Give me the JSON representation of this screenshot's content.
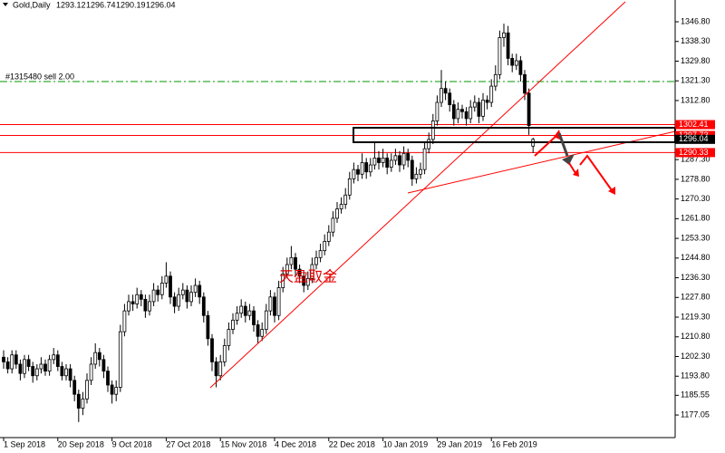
{
  "chart_data": {
    "type": "candlestick",
    "title": "Gold,Daily",
    "watermark": "天盈取金",
    "ylim": [
      1167.3,
      1356.2
    ],
    "yticks": [
      {
        "value": 1346.8,
        "label": "1346.80"
      },
      {
        "value": 1338.3,
        "label": "1338.30"
      },
      {
        "value": 1329.8,
        "label": "1329.80"
      },
      {
        "value": 1321.3,
        "label": "1321.30"
      },
      {
        "value": 1312.8,
        "label": "1312.80"
      },
      {
        "value": 1287.3,
        "label": "1287.30"
      },
      {
        "value": 1278.8,
        "label": "1278.80"
      },
      {
        "value": 1270.3,
        "label": "1270.30"
      },
      {
        "value": 1261.8,
        "label": "1261.80"
      },
      {
        "value": 1253.3,
        "label": "1253.30"
      },
      {
        "value": 1244.8,
        "label": "1244.80"
      },
      {
        "value": 1236.3,
        "label": "1236.30"
      },
      {
        "value": 1227.8,
        "label": "1227.80"
      },
      {
        "value": 1219.3,
        "label": "1219.30"
      },
      {
        "value": 1210.8,
        "label": "1210.80"
      },
      {
        "value": 1202.3,
        "label": "1202.30"
      },
      {
        "value": 1193.8,
        "label": "1193.80"
      },
      {
        "value": 1185.55,
        "label": "1185.55"
      },
      {
        "value": 1177.05,
        "label": "1177.05"
      }
    ],
    "categories": [
      "1 Sep 2018",
      null,
      null,
      null,
      null,
      null,
      null,
      null,
      null,
      null,
      null,
      null,
      null,
      "20 Sep 2018",
      null,
      null,
      null,
      null,
      null,
      null,
      null,
      null,
      null,
      null,
      null,
      null,
      "9 Oct 2018",
      null,
      null,
      null,
      null,
      null,
      null,
      null,
      null,
      null,
      null,
      null,
      null,
      "27 Oct 2018",
      null,
      null,
      null,
      null,
      null,
      null,
      null,
      null,
      null,
      null,
      null,
      null,
      "15 Nov 2018",
      null,
      null,
      null,
      null,
      null,
      null,
      null,
      null,
      null,
      null,
      null,
      null,
      "4 Dec 2018",
      null,
      null,
      null,
      null,
      null,
      null,
      null,
      null,
      null,
      null,
      null,
      null,
      "22 Dec 2018",
      null,
      null,
      null,
      null,
      null,
      null,
      null,
      null,
      null,
      null,
      null,
      null,
      "10 Jan 2019",
      null,
      null,
      null,
      null,
      null,
      null,
      null,
      null,
      null,
      null,
      null,
      null,
      "29 Jan 2019",
      null,
      null,
      null,
      null,
      null,
      null,
      null,
      null,
      null,
      null,
      null,
      null,
      "16 Feb 2019",
      null,
      null,
      null,
      null,
      null,
      null,
      null,
      null,
      null,
      null
    ],
    "ohlc": [
      [
        1202,
        1205,
        1197,
        1200
      ],
      [
        1200,
        1202,
        1195,
        1197
      ],
      [
        1197,
        1205,
        1195,
        1203
      ],
      [
        1203,
        1205,
        1197,
        1199
      ],
      [
        1199,
        1201,
        1192,
        1195
      ],
      [
        1195,
        1203,
        1193,
        1201
      ],
      [
        1201,
        1203,
        1196,
        1198
      ],
      [
        1198,
        1200,
        1191,
        1194
      ],
      [
        1194,
        1199,
        1192,
        1197
      ],
      [
        1197,
        1202,
        1195,
        1199
      ],
      [
        1199,
        1201,
        1194,
        1196
      ],
      [
        1196,
        1203,
        1194,
        1201
      ],
      [
        1201,
        1206,
        1199,
        1203
      ],
      [
        1203,
        1205,
        1196,
        1198
      ],
      [
        1198,
        1200,
        1192,
        1194
      ],
      [
        1194,
        1199,
        1192,
        1197
      ],
      [
        1197,
        1199,
        1189,
        1192
      ],
      [
        1192,
        1194,
        1183,
        1186
      ],
      [
        1186,
        1188,
        1174,
        1180
      ],
      [
        1180,
        1187,
        1177,
        1184
      ],
      [
        1184,
        1195,
        1182,
        1192
      ],
      [
        1192,
        1202,
        1190,
        1199
      ],
      [
        1199,
        1208,
        1197,
        1204
      ],
      [
        1204,
        1206,
        1198,
        1201
      ],
      [
        1201,
        1203,
        1193,
        1196
      ],
      [
        1196,
        1198,
        1187,
        1190
      ],
      [
        1190,
        1192,
        1182,
        1186
      ],
      [
        1186,
        1192,
        1183,
        1189
      ],
      [
        1189,
        1216,
        1187,
        1213
      ],
      [
        1213,
        1225,
        1211,
        1222
      ],
      [
        1222,
        1229,
        1220,
        1226
      ],
      [
        1226,
        1229,
        1222,
        1225
      ],
      [
        1225,
        1232,
        1223,
        1229
      ],
      [
        1229,
        1231,
        1224,
        1227
      ],
      [
        1227,
        1229,
        1219,
        1222
      ],
      [
        1222,
        1229,
        1220,
        1226
      ],
      [
        1226,
        1234,
        1224,
        1231
      ],
      [
        1231,
        1233,
        1226,
        1229
      ],
      [
        1229,
        1237,
        1227,
        1234
      ],
      [
        1234,
        1243,
        1232,
        1237
      ],
      [
        1237,
        1239,
        1225,
        1228
      ],
      [
        1228,
        1230,
        1221,
        1224
      ],
      [
        1224,
        1232,
        1222,
        1229
      ],
      [
        1229,
        1234,
        1227,
        1231
      ],
      [
        1231,
        1233,
        1223,
        1226
      ],
      [
        1226,
        1233,
        1224,
        1230
      ],
      [
        1230,
        1236,
        1228,
        1233
      ],
      [
        1233,
        1235,
        1225,
        1228
      ],
      [
        1228,
        1230,
        1217,
        1220
      ],
      [
        1220,
        1222,
        1207,
        1210
      ],
      [
        1210,
        1212,
        1196,
        1200
      ],
      [
        1200,
        1202,
        1189,
        1194
      ],
      [
        1194,
        1203,
        1192,
        1200
      ],
      [
        1200,
        1210,
        1198,
        1207
      ],
      [
        1207,
        1217,
        1205,
        1214
      ],
      [
        1214,
        1221,
        1212,
        1218
      ],
      [
        1218,
        1224,
        1216,
        1221
      ],
      [
        1221,
        1227,
        1219,
        1224
      ],
      [
        1224,
        1226,
        1217,
        1220
      ],
      [
        1220,
        1225,
        1218,
        1222
      ],
      [
        1222,
        1224,
        1213,
        1216
      ],
      [
        1216,
        1218,
        1208,
        1211
      ],
      [
        1211,
        1217,
        1209,
        1214
      ],
      [
        1214,
        1225,
        1212,
        1222
      ],
      [
        1222,
        1231,
        1220,
        1228
      ],
      [
        1228,
        1230,
        1217,
        1220
      ],
      [
        1220,
        1235,
        1218,
        1232
      ],
      [
        1232,
        1241,
        1230,
        1238
      ],
      [
        1238,
        1245,
        1236,
        1242
      ],
      [
        1242,
        1250,
        1240,
        1245
      ],
      [
        1245,
        1247,
        1237,
        1240
      ],
      [
        1240,
        1242,
        1234,
        1237
      ],
      [
        1237,
        1239,
        1230,
        1233
      ],
      [
        1233,
        1239,
        1231,
        1236
      ],
      [
        1236,
        1245,
        1234,
        1242
      ],
      [
        1242,
        1248,
        1240,
        1245
      ],
      [
        1245,
        1251,
        1243,
        1248
      ],
      [
        1248,
        1255,
        1246,
        1252
      ],
      [
        1252,
        1259,
        1250,
        1256
      ],
      [
        1256,
        1265,
        1254,
        1262
      ],
      [
        1262,
        1269,
        1260,
        1266
      ],
      [
        1266,
        1271,
        1264,
        1268
      ],
      [
        1268,
        1275,
        1266,
        1272
      ],
      [
        1272,
        1282,
        1270,
        1279
      ],
      [
        1279,
        1286,
        1277,
        1283
      ],
      [
        1283,
        1285,
        1278,
        1281
      ],
      [
        1281,
        1290,
        1279,
        1286
      ],
      [
        1286,
        1288,
        1279,
        1282
      ],
      [
        1282,
        1288,
        1280,
        1285
      ],
      [
        1285,
        1295,
        1283,
        1288
      ],
      [
        1288,
        1291,
        1283,
        1286
      ],
      [
        1286,
        1292,
        1284,
        1288
      ],
      [
        1288,
        1290,
        1281,
        1284
      ],
      [
        1284,
        1290,
        1282,
        1287
      ],
      [
        1287,
        1292,
        1285,
        1289
      ],
      [
        1289,
        1291,
        1282,
        1285
      ],
      [
        1285,
        1293,
        1283,
        1290
      ],
      [
        1290,
        1292,
        1284,
        1287
      ],
      [
        1287,
        1289,
        1276,
        1279
      ],
      [
        1279,
        1284,
        1277,
        1281
      ],
      [
        1281,
        1286,
        1279,
        1283
      ],
      [
        1283,
        1295,
        1281,
        1292
      ],
      [
        1292,
        1299,
        1290,
        1296
      ],
      [
        1296,
        1307,
        1294,
        1304
      ],
      [
        1304,
        1315,
        1302,
        1312
      ],
      [
        1312,
        1326,
        1310,
        1318
      ],
      [
        1318,
        1321,
        1313,
        1316
      ],
      [
        1316,
        1318,
        1308,
        1311
      ],
      [
        1311,
        1313,
        1302,
        1305
      ],
      [
        1305,
        1312,
        1303,
        1309
      ],
      [
        1309,
        1311,
        1305,
        1308
      ],
      [
        1308,
        1310,
        1302,
        1305
      ],
      [
        1305,
        1313,
        1303,
        1310
      ],
      [
        1310,
        1315,
        1308,
        1312
      ],
      [
        1312,
        1314,
        1303,
        1306
      ],
      [
        1306,
        1316,
        1304,
        1313
      ],
      [
        1313,
        1315,
        1309,
        1312
      ],
      [
        1312,
        1322,
        1310,
        1319
      ],
      [
        1319,
        1328,
        1317,
        1324
      ],
      [
        1324,
        1343,
        1322,
        1340
      ],
      [
        1340,
        1346,
        1336,
        1342
      ],
      [
        1342,
        1345,
        1328,
        1331
      ],
      [
        1331,
        1333,
        1325,
        1328
      ],
      [
        1328,
        1333,
        1326,
        1330
      ],
      [
        1330,
        1332,
        1321,
        1324
      ],
      [
        1324,
        1326,
        1313,
        1316
      ],
      [
        1316,
        1318,
        1298,
        1302
      ],
      [
        1293.12,
        1296.74,
        1290.19,
        1296.04
      ]
    ],
    "levels": [
      1302.41,
      1297.73,
      1290.33
    ],
    "level_color": "#ff0000",
    "order": {
      "label": "#1315480 sell 2.00",
      "value": 1321.0,
      "color": "#009a00"
    }
  }
}
